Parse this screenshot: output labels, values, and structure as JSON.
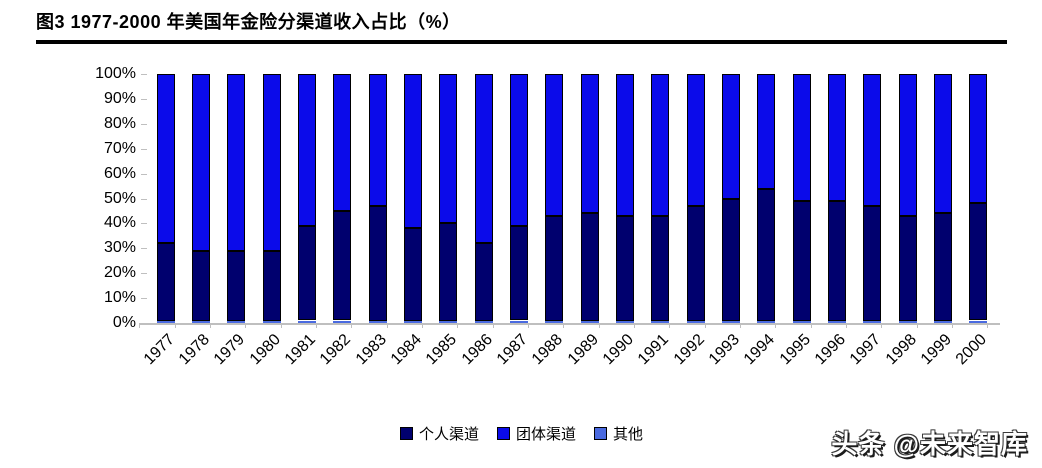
{
  "header": {
    "title": "图3  1977-2000 年美国年金险分渠道收入占比（%）"
  },
  "watermark": {
    "text": "头条 @未来智库"
  },
  "chart_data": {
    "type": "bar",
    "stacked": true,
    "title": "图3  1977-2000 年美国年金险分渠道收入占比（%）",
    "categories": [
      "1977",
      "1978",
      "1979",
      "1980",
      "1981",
      "1982",
      "1983",
      "1984",
      "1985",
      "1986",
      "1987",
      "1988",
      "1989",
      "1990",
      "1991",
      "1992",
      "1993",
      "1994",
      "1995",
      "1996",
      "1997",
      "1998",
      "1999",
      "2000"
    ],
    "series": [
      {
        "name": "个人渠道",
        "color": "#00006e",
        "values": [
          31,
          28,
          28,
          28,
          38,
          44,
          46,
          37,
          39,
          31,
          38,
          42,
          43,
          42,
          42,
          46,
          49,
          53,
          48,
          48,
          46,
          42,
          43,
          47
        ]
      },
      {
        "name": "团体渠道",
        "color": "#0b0bea",
        "values": [
          68,
          71,
          71,
          71,
          61,
          55,
          53,
          62,
          60,
          68,
          61,
          57,
          56,
          57,
          57,
          53,
          50,
          46,
          51,
          51,
          53,
          57,
          56,
          52
        ]
      },
      {
        "name": "其他",
        "color": "#4a6ae0",
        "values": [
          1,
          1,
          1,
          1,
          1,
          1,
          1,
          1,
          1,
          1,
          1,
          1,
          1,
          1,
          1,
          1,
          1,
          1,
          1,
          1,
          1,
          1,
          1,
          1
        ]
      }
    ],
    "stack_bottom_to_top": [
      "其他",
      "个人渠道",
      "团体渠道"
    ],
    "ylim": [
      0,
      100
    ],
    "ytick_step": 10,
    "ytick_suffix": "%",
    "grid": false,
    "legend_position": "bottom",
    "axis_color": "#bfbfbf",
    "xlabel": "",
    "ylabel": ""
  }
}
